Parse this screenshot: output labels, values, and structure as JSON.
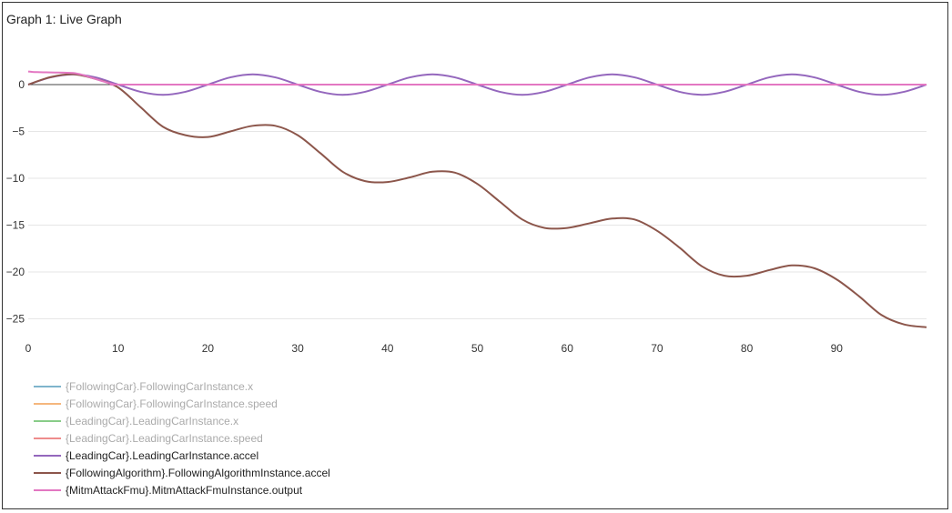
{
  "window": {
    "title": "Graph 1: Live Graph"
  },
  "chart_data": {
    "type": "line",
    "title": "Graph 1: Live Graph",
    "xlabel": "",
    "ylabel": "",
    "xlim": [
      0,
      100
    ],
    "ylim": [
      -27,
      3
    ],
    "xticks": [
      0,
      10,
      20,
      30,
      40,
      50,
      60,
      70,
      80,
      90
    ],
    "yticks": [
      0,
      -5,
      -10,
      -15,
      -20,
      -25
    ],
    "grid": "horizontal",
    "legend_position": "bottom-left",
    "series": [
      {
        "name": "{FollowingCar}.FollowingCarInstance.x",
        "color": "#7fb4cc",
        "hidden": true,
        "x": [],
        "y": []
      },
      {
        "name": "{FollowingCar}.FollowingCarInstance.speed",
        "color": "#f5b77e",
        "hidden": true,
        "x": [],
        "y": []
      },
      {
        "name": "{LeadingCar}.LeadingCarInstance.x",
        "color": "#88cc88",
        "hidden": true,
        "x": [],
        "y": []
      },
      {
        "name": "{LeadingCar}.LeadingCarInstance.speed",
        "color": "#ee8c8c",
        "hidden": true,
        "x": [],
        "y": []
      },
      {
        "name": "{LeadingCar}.LeadingCarInstance.accel",
        "color": "#9467bd",
        "hidden": false,
        "x": [
          0,
          2.5,
          5,
          7.5,
          10,
          12.5,
          15,
          17.5,
          20,
          22.5,
          25,
          27.5,
          30,
          32.5,
          35,
          37.5,
          40,
          42.5,
          45,
          47.5,
          50,
          52.5,
          55,
          57.5,
          60,
          62.5,
          65,
          67.5,
          70,
          72.5,
          75,
          77.5,
          80,
          82.5,
          85,
          87.5,
          90,
          92.5,
          95,
          97.5,
          100
        ],
        "y": [
          0,
          0.77,
          1.09,
          0.77,
          0,
          -0.77,
          -1.09,
          -0.77,
          0,
          0.77,
          1.09,
          0.77,
          0,
          -0.77,
          -1.09,
          -0.77,
          0,
          0.77,
          1.09,
          0.77,
          0,
          -0.77,
          -1.09,
          -0.77,
          0,
          0.77,
          1.09,
          0.77,
          0,
          -0.77,
          -1.09,
          -0.77,
          0,
          0.77,
          1.09,
          0.77,
          0,
          -0.77,
          -1.09,
          -0.77,
          0
        ]
      },
      {
        "name": "{FollowingAlgorithm}.FollowingAlgorithmInstance.accel",
        "color": "#8c564b",
        "hidden": false,
        "x": [
          0,
          2.5,
          5,
          7.5,
          10,
          12.5,
          15,
          17.5,
          20,
          22.5,
          25,
          27.5,
          30,
          32.5,
          35,
          37.5,
          40,
          42.5,
          45,
          47.5,
          50,
          52.5,
          55,
          57.5,
          60,
          62.5,
          65,
          67.5,
          70,
          72.5,
          75,
          77.5,
          80,
          82.5,
          85,
          87.5,
          90,
          92.5,
          95,
          97.5,
          100
        ],
        "y": [
          0,
          0.8,
          1.1,
          0.6,
          -0.3,
          -2.4,
          -4.5,
          -5.4,
          -5.6,
          -5.0,
          -4.4,
          -4.4,
          -5.4,
          -7.3,
          -9.3,
          -10.3,
          -10.4,
          -9.9,
          -9.3,
          -9.4,
          -10.6,
          -12.5,
          -14.4,
          -15.3,
          -15.3,
          -14.8,
          -14.3,
          -14.4,
          -15.6,
          -17.4,
          -19.4,
          -20.4,
          -20.4,
          -19.8,
          -19.3,
          -19.6,
          -20.8,
          -22.6,
          -24.6,
          -25.6,
          -25.9
        ]
      },
      {
        "name": "{MitmAttackFmu}.MitmAttackFmuInstance.output",
        "color": "#e377c2",
        "hidden": false,
        "x": [
          0,
          0.2,
          0.5,
          1,
          2,
          3,
          4,
          5,
          6,
          7,
          8,
          9,
          9.7,
          10,
          20,
          40,
          60,
          80,
          100
        ],
        "y": [
          1.4,
          1.38,
          1.35,
          1.33,
          1.31,
          1.29,
          1.27,
          1.24,
          1.05,
          0.75,
          0.45,
          0.15,
          0,
          0,
          0,
          0,
          0,
          0,
          0
        ]
      }
    ]
  }
}
